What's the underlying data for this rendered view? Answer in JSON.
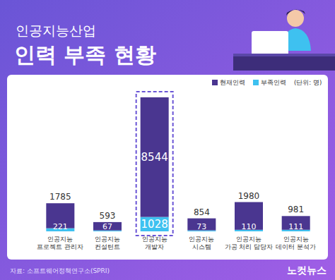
{
  "chart_data": {
    "type": "bar",
    "subtitle": "인공지능산업",
    "title": "인력 부족 현황",
    "y_label": "(단위: 명)",
    "source": "자료: 소프트웨어정책연구소(SPRI)",
    "credit": "노컷뉴스",
    "categories": [
      "인공지능 프로젝트 관리자",
      "인공지능 컨설턴트",
      "인공지능 개발자",
      "인공지능 시스템",
      "인공지능 가공 처리 담당자",
      "인공지능 데이터 분석가"
    ],
    "series": [
      {
        "name": "현재인력",
        "color": "#4a3690",
        "values": [
          1785,
          593,
          8544,
          854,
          1980,
          981
        ]
      },
      {
        "name": "부족인력",
        "color": "#3ec1f0",
        "values": [
          221,
          67,
          1028,
          73,
          110,
          111
        ]
      }
    ],
    "stacked": true,
    "data_labels": true,
    "tick_labels": false,
    "legend": "upper right"
  }
}
